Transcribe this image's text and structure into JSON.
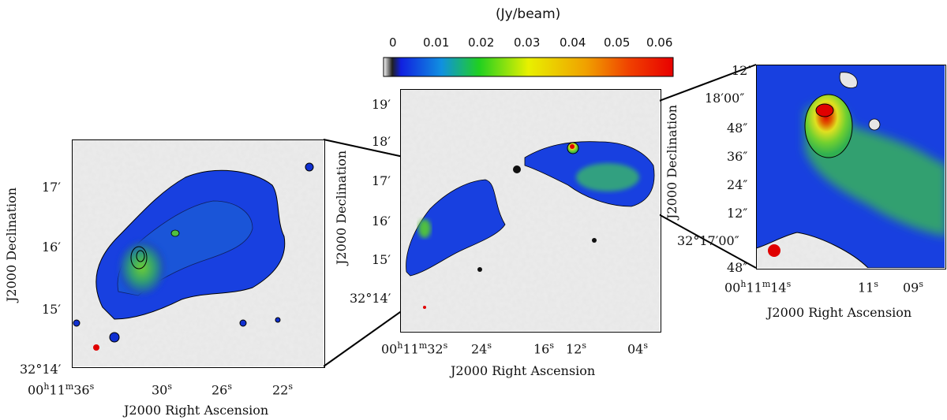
{
  "colors": {
    "noise_bg": "#e4e4e4",
    "blue": "#1030d0",
    "green": "#20c040",
    "yellow": "#f0f000",
    "red": "#e00000"
  },
  "colorbar": {
    "title": "(Jy/beam)",
    "ticks": [
      "0",
      "0.01",
      "0.02",
      "0.03",
      "0.04",
      "0.05",
      "0.06"
    ]
  },
  "chart_data": [
    {
      "type": "heatmap",
      "name": "left-zoom-panel",
      "xlabel": "J2000 Right Ascension",
      "ylabel": "J2000 Declination",
      "x_ticks": [
        "00h11m36s",
        "30s",
        "26s",
        "22s"
      ],
      "x_ticks_parts": [
        {
          "main": "00",
          "sup1": "h",
          "mid": "11",
          "sup2": "m",
          "tail": "36",
          "sup3": "s"
        },
        {
          "main": "30",
          "sup3": "s"
        },
        {
          "main": "26",
          "sup3": "s"
        },
        {
          "main": "22",
          "sup3": "s"
        }
      ],
      "y_ticks": [
        "17′",
        "16′",
        "15′",
        "32°14′"
      ]
    },
    {
      "type": "heatmap",
      "name": "center-full-panel",
      "xlabel": "J2000 Right Ascension",
      "ylabel": "J2000 Declination",
      "x_ticks_parts": [
        {
          "main": "00",
          "sup1": "h",
          "mid": "11",
          "sup2": "m",
          "tail": "32",
          "sup3": "s"
        },
        {
          "main": "24",
          "sup3": "s"
        },
        {
          "main": "16",
          "sup3": "s"
        },
        {
          "main": "12",
          "sup3": "s"
        },
        {
          "main": "04",
          "sup3": "s"
        }
      ],
      "y_ticks": [
        "19′",
        "18′",
        "17′",
        "16′",
        "15′",
        "32°14′"
      ]
    },
    {
      "type": "heatmap",
      "name": "right-zoom-panel",
      "xlabel": "J2000 Right Ascension",
      "ylabel": "J2000 Declination",
      "x_ticks_parts": [
        {
          "main": "00",
          "sup1": "h",
          "mid": "11",
          "sup2": "m",
          "tail": "14",
          "sup3": "s"
        },
        {
          "main": "11",
          "sup3": "s"
        },
        {
          "main": "09",
          "sup3": "s"
        }
      ],
      "y_ticks": [
        "12″",
        "18′00″",
        "48″",
        "36″",
        "24″",
        "12″",
        "32°17′00″",
        "48″"
      ]
    }
  ]
}
